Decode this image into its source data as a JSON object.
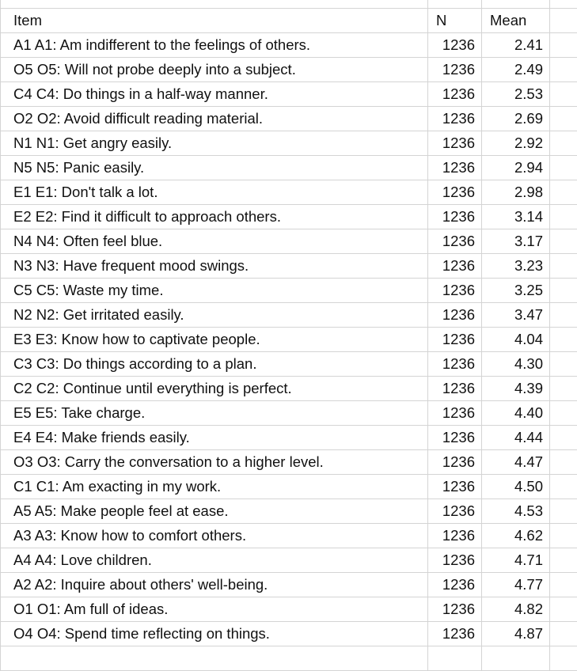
{
  "headers": {
    "item": "Item",
    "n": "N",
    "mean": "Mean"
  },
  "rows": [
    {
      "item": "A1 A1: Am indifferent to the feelings of others.",
      "n": "1236",
      "mean": "2.41"
    },
    {
      "item": "O5 O5: Will not probe deeply into a subject.",
      "n": "1236",
      "mean": "2.49"
    },
    {
      "item": "C4 C4: Do things in a half-way manner.",
      "n": "1236",
      "mean": "2.53"
    },
    {
      "item": "O2 O2: Avoid difficult reading material.",
      "n": "1236",
      "mean": "2.69"
    },
    {
      "item": "N1 N1: Get angry easily.",
      "n": "1236",
      "mean": "2.92"
    },
    {
      "item": "N5 N5: Panic easily.",
      "n": "1236",
      "mean": "2.94"
    },
    {
      "item": "E1 E1: Don't talk a lot.",
      "n": "1236",
      "mean": "2.98"
    },
    {
      "item": "E2 E2: Find it difficult to approach others.",
      "n": "1236",
      "mean": "3.14"
    },
    {
      "item": "N4 N4: Often feel blue.",
      "n": "1236",
      "mean": "3.17"
    },
    {
      "item": "N3 N3: Have frequent mood swings.",
      "n": "1236",
      "mean": "3.23"
    },
    {
      "item": "C5 C5: Waste my time.",
      "n": "1236",
      "mean": "3.25"
    },
    {
      "item": "N2 N2: Get irritated easily.",
      "n": "1236",
      "mean": "3.47"
    },
    {
      "item": "E3 E3: Know how to captivate people.",
      "n": "1236",
      "mean": "4.04"
    },
    {
      "item": "C3 C3: Do things according to a plan.",
      "n": "1236",
      "mean": "4.30"
    },
    {
      "item": "C2 C2: Continue until everything is perfect.",
      "n": "1236",
      "mean": "4.39"
    },
    {
      "item": "E5 E5: Take charge.",
      "n": "1236",
      "mean": "4.40"
    },
    {
      "item": "E4 E4: Make friends easily.",
      "n": "1236",
      "mean": "4.44"
    },
    {
      "item": "O3 O3: Carry the conversation to a higher level.",
      "n": "1236",
      "mean": "4.47"
    },
    {
      "item": "C1 C1: Am exacting in my work.",
      "n": "1236",
      "mean": "4.50"
    },
    {
      "item": "A5 A5: Make people feel at ease.",
      "n": "1236",
      "mean": "4.53"
    },
    {
      "item": "A3 A3: Know how to comfort others.",
      "n": "1236",
      "mean": "4.62"
    },
    {
      "item": "A4 A4: Love children.",
      "n": "1236",
      "mean": "4.71"
    },
    {
      "item": "A2 A2: Inquire about others' well-being.",
      "n": "1236",
      "mean": "4.77"
    },
    {
      "item": "O1 O1: Am full of ideas.",
      "n": "1236",
      "mean": "4.82"
    },
    {
      "item": "O4 O4: Spend time reflecting on things.",
      "n": "1236",
      "mean": "4.87"
    }
  ]
}
